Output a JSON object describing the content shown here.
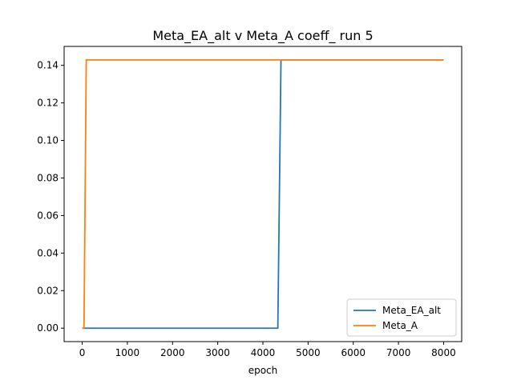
{
  "chart_data": {
    "type": "line",
    "title": "Meta_EA_alt v Meta_A coeff_ run 5",
    "xlabel": "epoch",
    "ylabel": "",
    "xlim": [
      -400,
      8400
    ],
    "ylim": [
      -0.00715,
      0.1501
    ],
    "xticks": [
      0,
      1000,
      2000,
      3000,
      4000,
      5000,
      6000,
      7000,
      8000
    ],
    "xtick_labels": [
      "0",
      "1000",
      "2000",
      "3000",
      "4000",
      "5000",
      "6000",
      "7000",
      "8000"
    ],
    "yticks": [
      0.0,
      0.02,
      0.04,
      0.06,
      0.08,
      0.1,
      0.12,
      0.14
    ],
    "ytick_labels": [
      "0.00",
      "0.02",
      "0.04",
      "0.06",
      "0.08",
      "0.10",
      "0.12",
      "0.14"
    ],
    "grid": false,
    "legend_position": "lower-right",
    "series": [
      {
        "name": "Meta_EA_alt",
        "color": "#1f77b4",
        "x": [
          0,
          4330,
          4400,
          8000
        ],
        "y": [
          0.0,
          0.0,
          0.1429,
          0.1429
        ]
      },
      {
        "name": "Meta_A",
        "color": "#ff7f0e",
        "x": [
          0,
          40,
          90,
          8000
        ],
        "y": [
          0.0,
          0.0,
          0.1429,
          0.1429
        ]
      }
    ]
  }
}
